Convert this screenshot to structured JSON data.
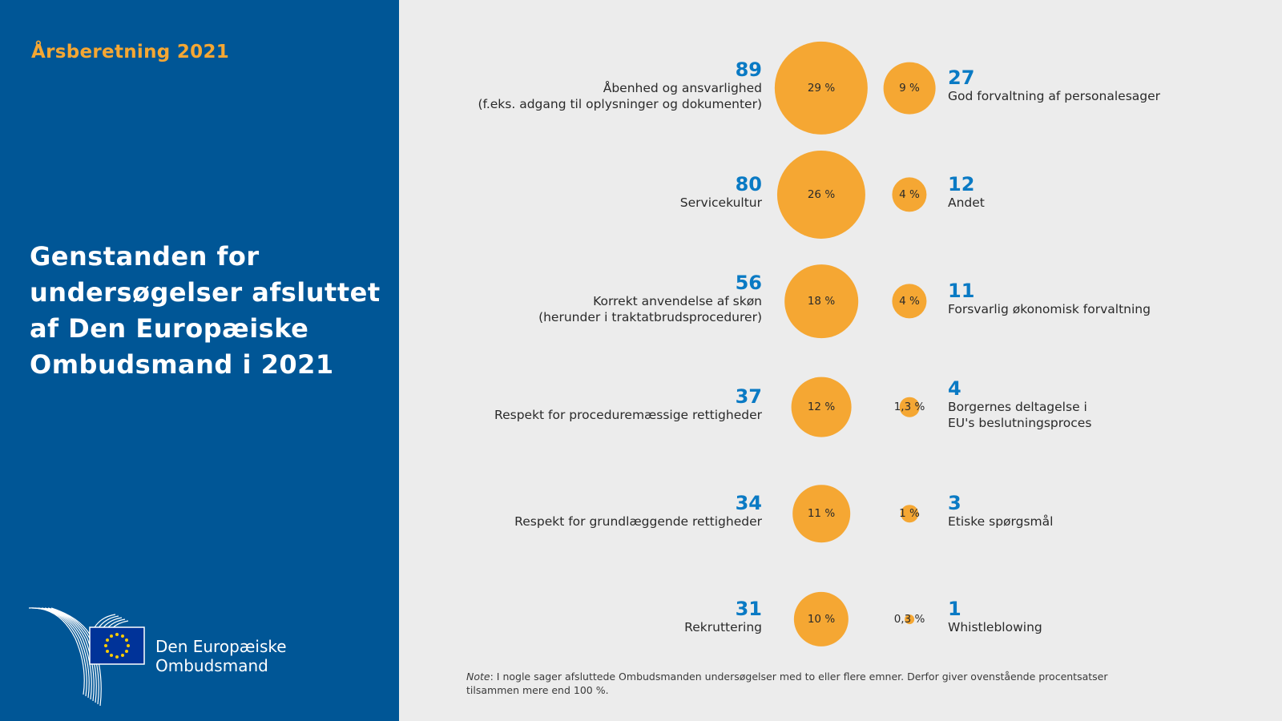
{
  "header": {
    "report_label": "Årsberetning 2021",
    "title": "Genstanden for undersøgelser afsluttet af Den Europæiske Ombudsmand i 2021"
  },
  "logo": {
    "line1": "Den Europæiske",
    "line2": "Ombudsmand",
    "icon": "eu-ombudsman-logo-icon"
  },
  "colors": {
    "panel_bg": "#005696",
    "accent_orange": "#f5a733",
    "number_blue": "#0a7ac4",
    "page_bg": "#ececec"
  },
  "note": {
    "prefix": "Note",
    "text": ": I nogle sager afsluttede Ombudsmanden undersøgelser med to eller flere emner. Derfor giver ovenstående procentsatser tilsammen mere end 100 %."
  },
  "chart_data": {
    "type": "bubble",
    "title": "Genstanden for undersøgelser afsluttet af Den Europæiske Ombudsmand i 2021",
    "unit": "percent of closed inquiries",
    "series": [
      {
        "name": "left-column",
        "items": [
          {
            "count": 89,
            "percent": 29,
            "percent_label": "29 %",
            "label": "Åbenhed og ansvarlighed\n(f.eks. adgang til oplysninger og dokumenter)"
          },
          {
            "count": 80,
            "percent": 26,
            "percent_label": "26 %",
            "label": "Servicekultur"
          },
          {
            "count": 56,
            "percent": 18,
            "percent_label": "18 %",
            "label": "Korrekt anvendelse af skøn\n(herunder i traktatbrudsprocedurer)"
          },
          {
            "count": 37,
            "percent": 12,
            "percent_label": "12 %",
            "label": "Respekt for proceduremæssige rettigheder"
          },
          {
            "count": 34,
            "percent": 11,
            "percent_label": "11 %",
            "label": "Respekt for grundlæggende rettigheder"
          },
          {
            "count": 31,
            "percent": 10,
            "percent_label": "10 %",
            "label": "Rekruttering"
          }
        ]
      },
      {
        "name": "right-column",
        "items": [
          {
            "count": 27,
            "percent": 9,
            "percent_label": "9 %",
            "label": "God forvaltning af personalesager"
          },
          {
            "count": 12,
            "percent": 4,
            "percent_label": "4 %",
            "label": "Andet"
          },
          {
            "count": 11,
            "percent": 4,
            "percent_label": "4 %",
            "label": "Forsvarlig økonomisk forvaltning"
          },
          {
            "count": 4,
            "percent": 1.3,
            "percent_label": "1,3 %",
            "label": "Borgernes deltagelse i\nEU's beslutningsproces"
          },
          {
            "count": 3,
            "percent": 1,
            "percent_label": "1 %",
            "label": "Etiske spørgsmål"
          },
          {
            "count": 1,
            "percent": 0.3,
            "percent_label": "0,3 %",
            "label": "Whistleblowing"
          }
        ]
      }
    ],
    "note": "I nogle sager afsluttede Ombudsmanden undersøgelser med to eller flere emner. Derfor giver ovenstående procentsatser tilsammen mere end 100 %."
  }
}
